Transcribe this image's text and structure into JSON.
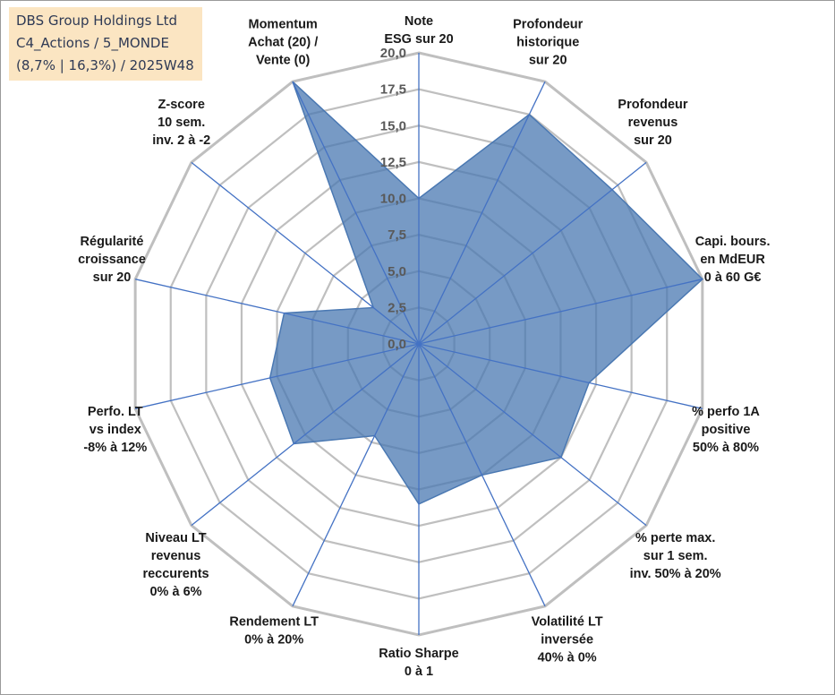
{
  "title_box": {
    "line1": "DBS Group Holdings Ltd",
    "line2": "C4_Actions / 5_MONDE",
    "line3": "(8,7% | 16,3%) / 2025W48",
    "background": "#fbe5c2"
  },
  "chart_data": {
    "type": "radar",
    "axis_min": 0,
    "axis_max": 20,
    "tick_step": 2.5,
    "tick_labels": [
      "0,0",
      "2,5",
      "5,0",
      "7,5",
      "10,0",
      "12,5",
      "15,0",
      "17,5",
      "20,0"
    ],
    "axes": [
      {
        "label": [
          "Note",
          "ESG sur 20"
        ]
      },
      {
        "label": [
          "Profondeur",
          "historique",
          "sur 20"
        ]
      },
      {
        "label": [
          "Profondeur",
          "revenus",
          "sur 20"
        ]
      },
      {
        "label": [
          "Capi. bours.",
          "en MdEUR",
          "0 à 60 G€"
        ]
      },
      {
        "label": [
          "% perfo 1A",
          "positive",
          "50% à 80%"
        ]
      },
      {
        "label": [
          "% perte max.",
          "sur 1 sem.",
          "inv. 50% à 20%"
        ]
      },
      {
        "label": [
          "Volatilité LT",
          "inversée",
          "40% à 0%"
        ]
      },
      {
        "label": [
          "Ratio Sharpe",
          "0 à 1"
        ]
      },
      {
        "label": [
          "Rendement LT",
          "0% à 20%"
        ]
      },
      {
        "label": [
          "Niveau LT",
          "revenus",
          "reccurents",
          "0% à 6%"
        ]
      },
      {
        "label": [
          "Perfo. LT",
          "vs index",
          "-8% à 12%"
        ]
      },
      {
        "label": [
          "Régularité",
          "croissance",
          "sur 20"
        ]
      },
      {
        "label": [
          "Z-score",
          "10 sem.",
          "inv. 2 à -2"
        ]
      },
      {
        "label": [
          "Momentum",
          "Achat (20) /",
          "Vente (0)"
        ]
      }
    ],
    "values": [
      10.0,
      17.5,
      17.0,
      20.0,
      12.0,
      12.5,
      10.0,
      11.0,
      7.0,
      11.0,
      10.5,
      9.5,
      4.0,
      20.0
    ],
    "series_color": "#4a78b2",
    "fill_opacity": 0.75,
    "grid_color": "#bfbfbf",
    "spoke_color": "#4472c4",
    "grid": true
  }
}
